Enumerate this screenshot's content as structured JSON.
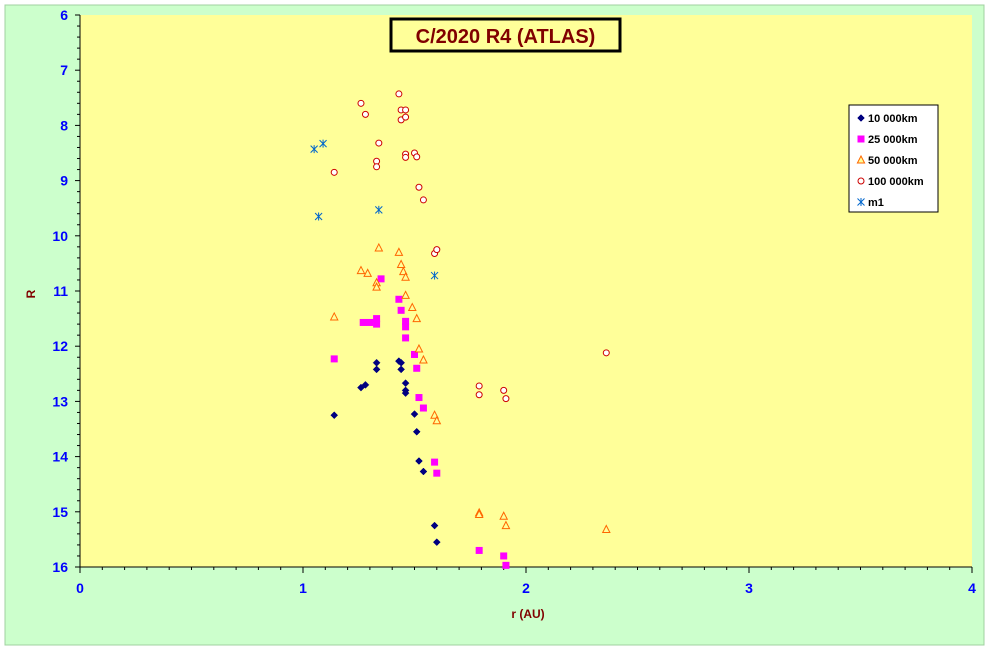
{
  "chart_data": {
    "type": "scatter",
    "title": "C/2020 R4 (ATLAS)",
    "xlabel": "r (AU)",
    "ylabel": "R",
    "xlim": [
      0,
      4
    ],
    "ylim": [
      16,
      6
    ],
    "y_inverted": true,
    "x_ticks": [
      "0",
      "1",
      "2",
      "3",
      "4"
    ],
    "y_ticks": [
      "6",
      "7",
      "8",
      "9",
      "10",
      "11",
      "12",
      "13",
      "14",
      "15",
      "16"
    ],
    "grid": false,
    "legend_position": "top-right",
    "colors": {
      "outer_background": "#ccffcc",
      "plot_background": "#ffff99",
      "title_text": "#800000",
      "axis_text": "#0000ff",
      "axis_title": "#800000",
      "legend_bg": "#ffffff"
    },
    "series": [
      {
        "name": "10 000km",
        "marker": "diamond",
        "color": "#000080",
        "points": [
          [
            1.14,
            13.25
          ],
          [
            1.26,
            12.75
          ],
          [
            1.28,
            12.7
          ],
          [
            1.33,
            12.3
          ],
          [
            1.33,
            12.42
          ],
          [
            1.43,
            12.27
          ],
          [
            1.44,
            12.3
          ],
          [
            1.44,
            12.42
          ],
          [
            1.46,
            12.67
          ],
          [
            1.46,
            12.8
          ],
          [
            1.46,
            12.85
          ],
          [
            1.5,
            13.23
          ],
          [
            1.51,
            13.55
          ],
          [
            1.52,
            14.08
          ],
          [
            1.54,
            14.27
          ],
          [
            1.59,
            15.25
          ],
          [
            1.6,
            15.55
          ]
        ]
      },
      {
        "name": "25 000km",
        "marker": "square",
        "color": "#ff00ff",
        "points": [
          [
            1.14,
            12.23
          ],
          [
            1.27,
            11.57
          ],
          [
            1.3,
            11.57
          ],
          [
            1.33,
            11.5
          ],
          [
            1.33,
            11.6
          ],
          [
            1.35,
            10.78
          ],
          [
            1.43,
            11.15
          ],
          [
            1.44,
            11.35
          ],
          [
            1.46,
            11.55
          ],
          [
            1.46,
            11.65
          ],
          [
            1.46,
            11.85
          ],
          [
            1.5,
            12.15
          ],
          [
            1.51,
            12.4
          ],
          [
            1.52,
            12.93
          ],
          [
            1.54,
            13.12
          ],
          [
            1.59,
            14.1
          ],
          [
            1.6,
            14.3
          ],
          [
            1.79,
            15.7
          ],
          [
            1.9,
            15.8
          ],
          [
            1.91,
            15.97
          ]
        ]
      },
      {
        "name": "50 000km",
        "marker": "triangle",
        "color": "#ff6600",
        "points": [
          [
            1.14,
            11.47
          ],
          [
            1.26,
            10.63
          ],
          [
            1.29,
            10.68
          ],
          [
            1.33,
            10.85
          ],
          [
            1.33,
            10.93
          ],
          [
            1.34,
            10.22
          ],
          [
            1.43,
            10.3
          ],
          [
            1.44,
            10.52
          ],
          [
            1.45,
            10.65
          ],
          [
            1.46,
            10.75
          ],
          [
            1.46,
            11.08
          ],
          [
            1.49,
            11.3
          ],
          [
            1.51,
            11.5
          ],
          [
            1.52,
            12.05
          ],
          [
            1.54,
            12.25
          ],
          [
            1.59,
            13.25
          ],
          [
            1.6,
            13.35
          ],
          [
            1.79,
            15.02
          ],
          [
            1.79,
            15.05
          ],
          [
            1.9,
            15.08
          ],
          [
            1.91,
            15.25
          ],
          [
            2.36,
            15.32
          ]
        ]
      },
      {
        "name": "100 000km",
        "marker": "circle",
        "color": "#cc0000",
        "points": [
          [
            1.14,
            8.85
          ],
          [
            1.26,
            7.6
          ],
          [
            1.28,
            7.8
          ],
          [
            1.33,
            8.65
          ],
          [
            1.33,
            8.75
          ],
          [
            1.34,
            8.32
          ],
          [
            1.43,
            7.43
          ],
          [
            1.44,
            7.72
          ],
          [
            1.44,
            7.9
          ],
          [
            1.46,
            7.72
          ],
          [
            1.46,
            7.85
          ],
          [
            1.46,
            8.52
          ],
          [
            1.46,
            8.58
          ],
          [
            1.5,
            8.5
          ],
          [
            1.51,
            8.57
          ],
          [
            1.52,
            9.12
          ],
          [
            1.54,
            9.35
          ],
          [
            1.59,
            10.32
          ],
          [
            1.6,
            10.25
          ],
          [
            1.79,
            12.72
          ],
          [
            1.79,
            12.88
          ],
          [
            1.9,
            12.8
          ],
          [
            1.91,
            12.95
          ],
          [
            2.36,
            12.12
          ]
        ]
      },
      {
        "name": "m1",
        "marker": "star",
        "color": "#0066cc",
        "points": [
          [
            1.05,
            8.43
          ],
          [
            1.07,
            9.65
          ],
          [
            1.09,
            8.33
          ],
          [
            1.34,
            9.53
          ],
          [
            1.59,
            10.72
          ]
        ]
      }
    ]
  }
}
